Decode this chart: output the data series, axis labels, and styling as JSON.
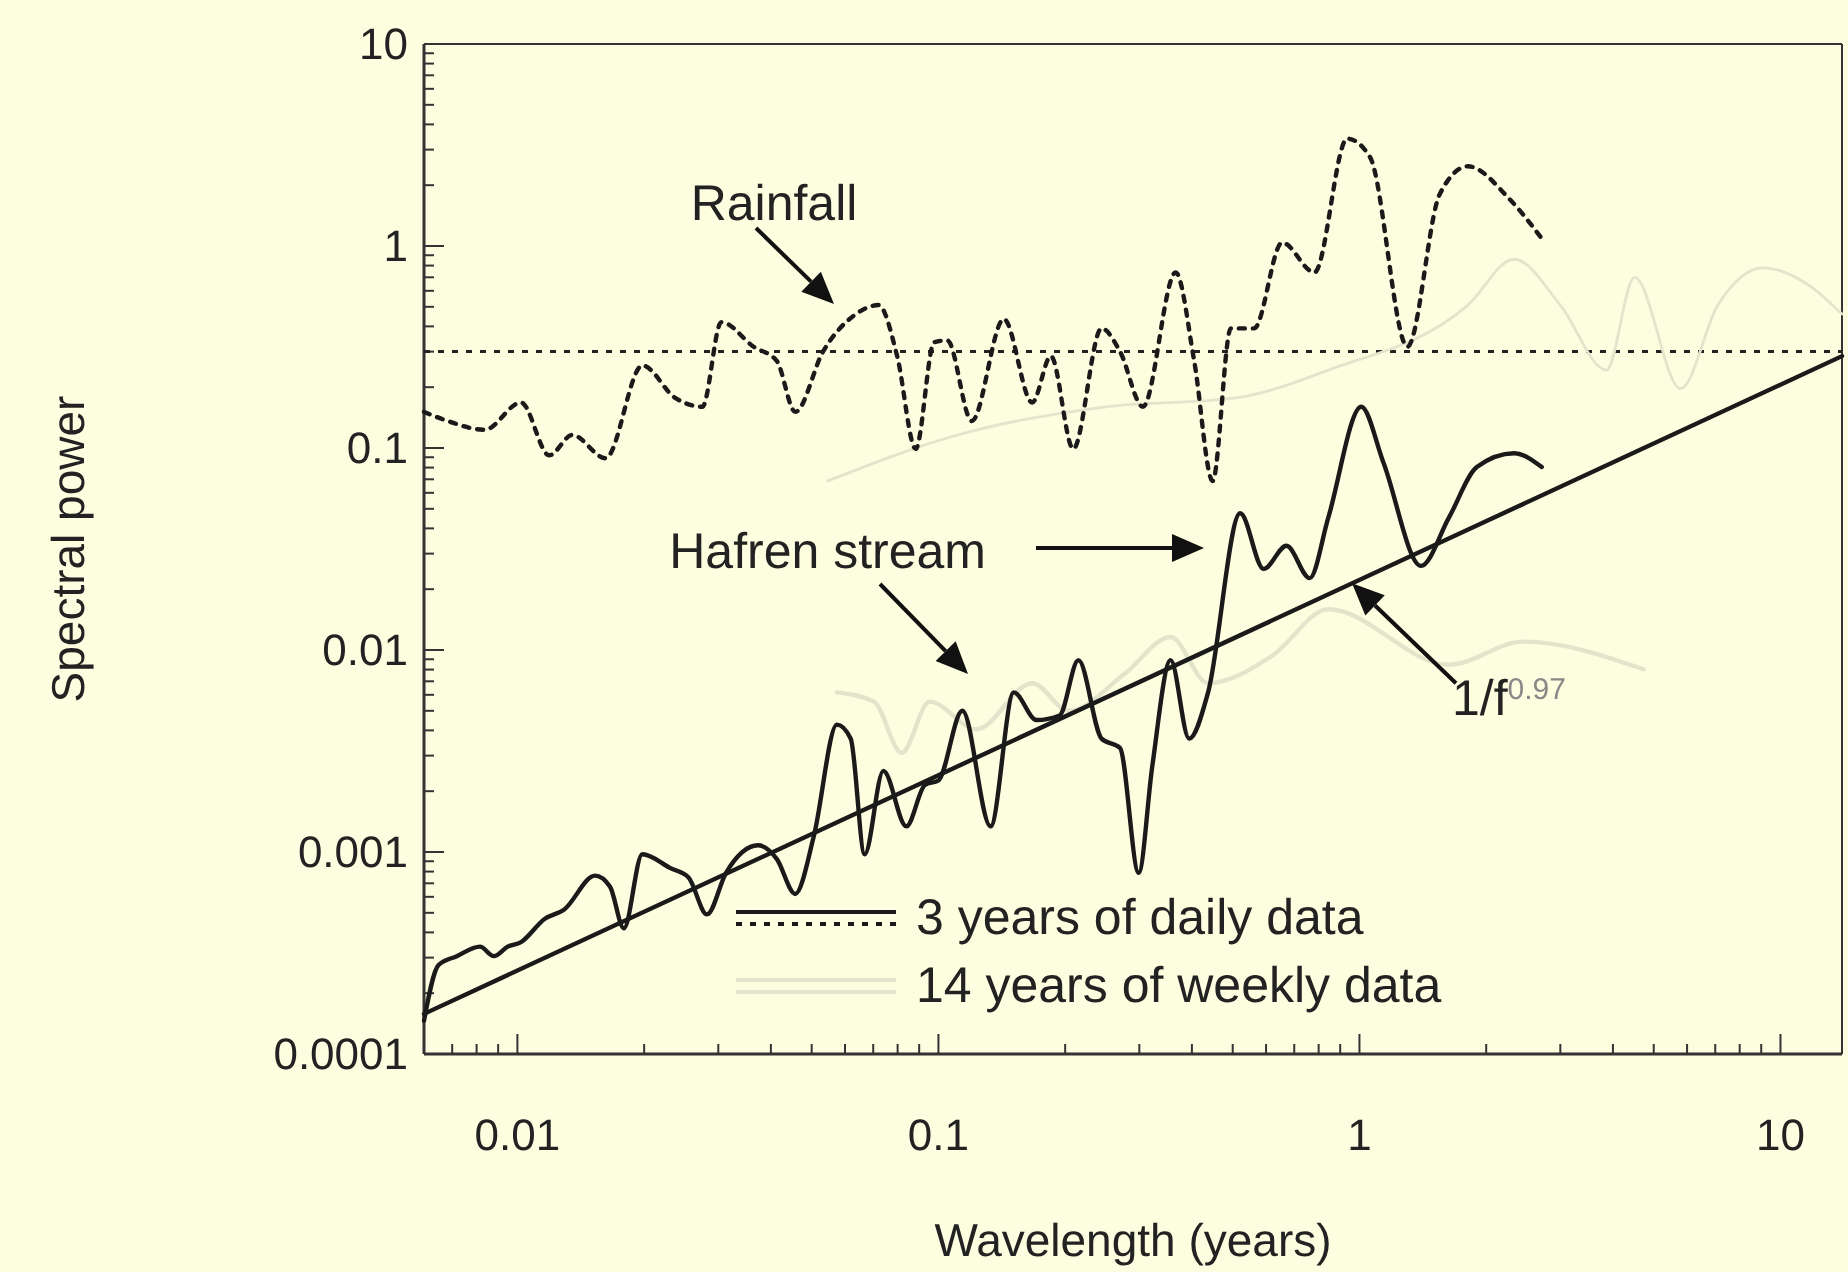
{
  "chart_data": {
    "type": "line",
    "xlabel": "Wavelength (years)",
    "ylabel": "Spectral power",
    "log": "xy",
    "legend": "bottom",
    "grid": false,
    "xlim": [
      0.006,
      14
    ],
    "ylim": [
      0.0001,
      10
    ],
    "xticks": [
      {
        "value": 0.006,
        "label": null
      },
      {
        "value": 0.007,
        "label": null
      },
      {
        "value": 0.008,
        "label": null
      },
      {
        "value": 0.009,
        "label": null
      },
      0.01,
      {
        "value": 0.02,
        "label": null
      },
      {
        "value": 0.03,
        "label": null
      },
      {
        "value": 0.04,
        "label": null
      },
      {
        "value": 0.05,
        "label": null
      },
      {
        "value": 0.06,
        "label": null
      },
      {
        "value": 0.07,
        "label": null
      },
      {
        "value": 0.08,
        "label": null
      },
      {
        "value": 0.09,
        "label": null
      },
      0.1,
      {
        "value": 0.2,
        "label": null
      },
      {
        "value": 0.3,
        "label": null
      },
      {
        "value": 0.4,
        "label": null
      },
      {
        "value": 0.5,
        "label": null
      },
      {
        "value": 0.6,
        "label": null
      },
      {
        "value": 0.7,
        "label": null
      },
      {
        "value": 0.8,
        "label": null
      },
      {
        "value": 0.9,
        "label": null
      },
      1,
      {
        "value": 2,
        "label": null
      },
      {
        "value": 3,
        "label": null
      },
      {
        "value": 4,
        "label": null
      },
      {
        "value": 5,
        "label": null
      },
      {
        "value": 6,
        "label": null
      },
      {
        "value": 7,
        "label": null
      },
      {
        "value": 8,
        "label": null
      },
      {
        "value": 9,
        "label": null
      },
      10
    ],
    "yticks": [
      0.0001,
      {
        "value": 0.0002,
        "label": null
      },
      {
        "value": 0.0003,
        "label": null
      },
      {
        "value": 0.0004,
        "label": null
      },
      {
        "value": 0.0005,
        "label": null
      },
      {
        "value": 0.0006,
        "label": null
      },
      {
        "value": 0.0007,
        "label": null
      },
      {
        "value": 0.0008,
        "label": null
      },
      {
        "value": 0.0009,
        "label": null
      },
      0.001,
      {
        "value": 0.002,
        "label": null
      },
      {
        "value": 0.003,
        "label": null
      },
      {
        "value": 0.004,
        "label": null
      },
      {
        "value": 0.005,
        "label": null
      },
      {
        "value": 0.006,
        "label": null
      },
      {
        "value": 0.007,
        "label": null
      },
      {
        "value": 0.008,
        "label": null
      },
      {
        "value": 0.009,
        "label": null
      },
      0.01,
      {
        "value": 0.02,
        "label": null
      },
      {
        "value": 0.03,
        "label": null
      },
      {
        "value": 0.04,
        "label": null
      },
      {
        "value": 0.05,
        "label": null
      },
      {
        "value": 0.06,
        "label": null
      },
      {
        "value": 0.07,
        "label": null
      },
      {
        "value": 0.08,
        "label": null
      },
      {
        "value": 0.09,
        "label": null
      },
      0.1,
      {
        "value": 0.2,
        "label": null
      },
      {
        "value": 0.3,
        "label": null
      },
      {
        "value": 0.4,
        "label": null
      },
      {
        "value": 0.5,
        "label": null
      },
      {
        "value": 0.6,
        "label": null
      },
      {
        "value": 0.7,
        "label": null
      },
      {
        "value": 0.8,
        "label": null
      },
      {
        "value": 0.9,
        "label": null
      },
      1,
      {
        "value": 2,
        "label": null
      },
      {
        "value": 3,
        "label": null
      },
      {
        "value": 4,
        "label": null
      },
      {
        "value": 5,
        "label": null
      },
      {
        "value": 6,
        "label": null
      },
      {
        "value": 7,
        "label": null
      },
      {
        "value": 8,
        "label": null
      },
      {
        "value": 9,
        "label": null
      },
      10
    ],
    "ref_lines": [
      {
        "axis": "y",
        "value": 0.3,
        "color": "#222222",
        "line_style": "dotted"
      }
    ],
    "series": [
      {
        "name": "14 years of weekly data",
        "color": "#e4e4cc",
        "line_style": "solid",
        "x": [
          0.0546,
          0.111,
          0.25,
          0.508,
          0.843,
          1.81,
          2.33,
          3.0,
          3.86,
          4.5,
          5.79,
          7.1,
          9.1,
          11.8,
          14
        ],
        "values": [
          0.0687,
          0.116,
          0.16,
          0.177,
          0.243,
          0.51,
          0.86,
          0.51,
          0.243,
          0.7,
          0.197,
          0.51,
          0.78,
          0.63,
          0.46
        ]
      },
      {
        "color": "#e4e4cc",
        "line_style": "solid",
        "x": [
          0.0574,
          0.0703,
          0.0818,
          0.0953,
          0.123,
          0.167,
          0.204,
          0.277,
          0.356,
          0.437,
          0.622,
          0.843,
          1.63,
          2.45,
          4.73
        ],
        "values": [
          0.00617,
          0.00555,
          0.0031,
          0.00555,
          0.00405,
          0.00685,
          0.005,
          0.00762,
          0.0116,
          0.00685,
          0.0094,
          0.0159,
          0.00845,
          0.011,
          0.00803
        ]
      },
      {
        "name": "3 years of daily data",
        "color": "#1a1a1a",
        "line_style": "dotted",
        "x": [
          0.006,
          0.00683,
          0.00836,
          0.0102,
          0.0119,
          0.0135,
          0.0162,
          0.0198,
          0.0237,
          0.0275,
          0.0305,
          0.0364,
          0.0413,
          0.0457,
          0.0532,
          0.0635,
          0.0721,
          0.0798,
          0.0883,
          0.0977,
          0.105,
          0.12,
          0.143,
          0.167,
          0.185,
          0.209,
          0.244,
          0.27,
          0.306,
          0.366,
          0.405,
          0.448,
          0.495,
          0.562,
          0.655,
          0.782,
          0.935,
          1.06,
          1.3,
          1.55,
          1.81,
          2.27,
          2.71
        ],
        "values": [
          0.151,
          0.136,
          0.123,
          0.168,
          0.092,
          0.116,
          0.089,
          0.256,
          0.177,
          0.16,
          0.42,
          0.317,
          0.27,
          0.151,
          0.3,
          0.458,
          0.51,
          0.285,
          0.099,
          0.334,
          0.341,
          0.136,
          0.435,
          0.168,
          0.285,
          0.099,
          0.391,
          0.3,
          0.16,
          0.74,
          0.27,
          0.0687,
          0.391,
          0.391,
          1.04,
          0.74,
          3.4,
          2.75,
          0.317,
          1.8,
          2.48,
          1.71,
          1.09
        ]
      },
      {
        "color": "#1a1a1a",
        "line_style": "solid",
        "x": [
          0.006,
          0.00649,
          0.00718,
          0.00815,
          0.00879,
          0.00948,
          0.0102,
          0.0116,
          0.0129,
          0.0153,
          0.0166,
          0.0179,
          0.0198,
          0.0231,
          0.0255,
          0.0282,
          0.0313,
          0.0373,
          0.0413,
          0.0457,
          0.0506,
          0.0574,
          0.0619,
          0.0668,
          0.074,
          0.0839,
          0.0929,
          0.1,
          0.114,
          0.133,
          0.151,
          0.171,
          0.194,
          0.215,
          0.244,
          0.27,
          0.299,
          0.322,
          0.356,
          0.394,
          0.437,
          0.521,
          0.592,
          0.671,
          0.762,
          0.843,
          1.01,
          1.14,
          1.4,
          1.63,
          1.9,
          2.33,
          2.71
        ],
        "values": [
          0.000146,
          0.000275,
          0.000305,
          0.00034,
          0.000305,
          0.00034,
          0.000358,
          0.000466,
          0.000518,
          0.000764,
          0.000673,
          0.000419,
          0.000975,
          0.000832,
          0.000748,
          0.000491,
          0.000789,
          0.00108,
          0.000925,
          0.00062,
          0.0012,
          0.00427,
          0.00364,
          0.000975,
          0.00252,
          0.00134,
          0.00215,
          0.00226,
          0.005,
          0.00134,
          0.00617,
          0.0045,
          0.00474,
          0.00891,
          0.00364,
          0.00327,
          0.000789,
          0.00265,
          0.00891,
          0.00364,
          0.00617,
          0.0475,
          0.0252,
          0.0328,
          0.0227,
          0.0451,
          0.16,
          0.0848,
          0.0261,
          0.0451,
          0.0805,
          0.0942,
          0.0805
        ]
      },
      {
        "type": "line",
        "color": "#1a1a1a",
        "line_style": "solid",
        "x": [
          0.006,
          14
        ],
        "values": [
          0.000158,
          0.285
        ]
      }
    ],
    "annotations": [
      "Rainfall",
      "Hafren stream",
      {
        "text": "1/f$^{0.97}$",
        "x": 0.96,
        "y": 0.0214
      }
    ]
  }
}
